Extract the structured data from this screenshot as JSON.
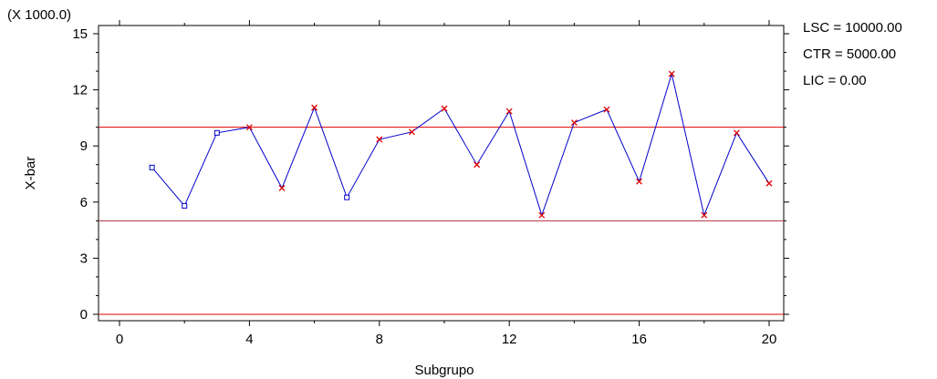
{
  "chart_data": {
    "type": "line",
    "scale_note": "(X 1000.0)",
    "xlabel": "Subgrupo",
    "ylabel": "X-bar",
    "xlim": [
      -0.5,
      20.5
    ],
    "ylim": [
      -0.3,
      15.3
    ],
    "x_ticks": [
      0,
      4,
      8,
      12,
      16,
      20
    ],
    "y_ticks": [
      0,
      3,
      6,
      9,
      12,
      15
    ],
    "grid": false,
    "control_limits": {
      "upper": {
        "label": "LSC = 10000.00",
        "value": 10.0,
        "color": "#e00000"
      },
      "center": {
        "label": "CTR = 5000.00",
        "value": 5.0,
        "color": "#b03040"
      },
      "lower": {
        "label": "LIC = 0.00",
        "value": 0.0,
        "color": "#e00000"
      }
    },
    "series": [
      {
        "line_color": "#0000cc",
        "x": [
          1,
          2,
          3,
          4,
          5,
          6,
          7,
          8,
          9,
          10,
          11,
          12,
          13,
          14,
          15,
          16,
          17,
          18,
          19,
          20
        ],
        "values": [
          7.85,
          5.8,
          9.7,
          10.0,
          6.75,
          11.05,
          6.25,
          9.35,
          9.75,
          11.0,
          8.0,
          10.85,
          5.3,
          10.25,
          10.95,
          7.1,
          12.85,
          5.3,
          9.7,
          7.0
        ],
        "marker_type": [
          "square",
          "square",
          "square",
          "x",
          "x",
          "x",
          "square",
          "x",
          "x",
          "x",
          "x",
          "x",
          "x",
          "x",
          "x",
          "x",
          "x",
          "x",
          "x",
          "x"
        ]
      }
    ],
    "marker_colors": {
      "square": "#0000cc",
      "x": "#e00000"
    }
  }
}
